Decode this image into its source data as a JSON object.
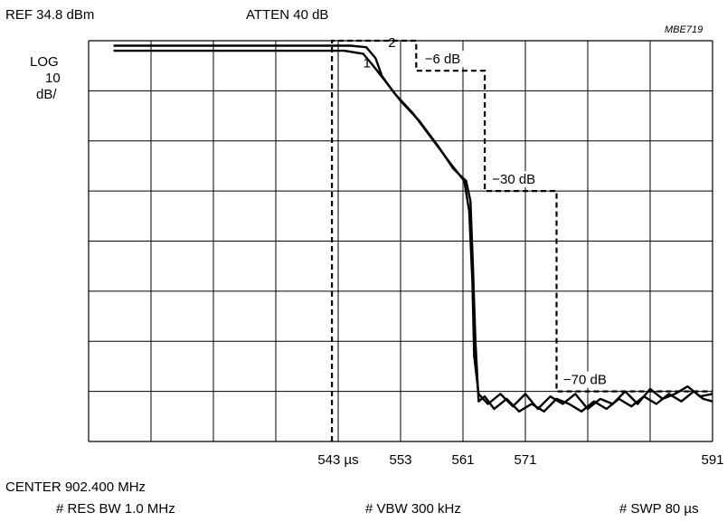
{
  "header": {
    "ref_level": "REF 34.8 dBm",
    "attenuation": "ATTEN 40 dB",
    "figure_id": "MBE719"
  },
  "scale": {
    "line1": "LOG",
    "line2": "10",
    "line3": "dB/"
  },
  "footer": {
    "center": "CENTER 902.400 MHz",
    "res_bw": "# RES BW 1.0 MHz",
    "vbw": "# VBW 300 kHz",
    "swp": "# SWP 80 µs"
  },
  "chart_data": {
    "type": "line",
    "title": "",
    "grid": true,
    "grid_divisions": {
      "x": 10,
      "y": 8
    },
    "ylim": [
      -80,
      0
    ],
    "x_tick_labels": [
      "543 µs",
      "553",
      "561",
      "571",
      "591"
    ],
    "x_tick_positions_div": [
      4,
      5,
      6,
      7,
      10
    ],
    "mask_labels": [
      "−6 dB",
      "−30 dB",
      "−70 dB"
    ],
    "mask": {
      "name": "limit mask",
      "style": "dashed",
      "points_div_db": [
        [
          3.9,
          -80
        ],
        [
          3.9,
          0
        ],
        [
          5.25,
          0
        ],
        [
          5.25,
          -6
        ],
        [
          6.35,
          -6
        ],
        [
          6.35,
          -30
        ],
        [
          7.5,
          -30
        ],
        [
          7.5,
          -70
        ],
        [
          10,
          -70
        ]
      ]
    },
    "series": [
      {
        "label": "1",
        "points_div_db": [
          [
            0.4,
            -2
          ],
          [
            4.1,
            -2
          ],
          [
            4.4,
            -2.6
          ],
          [
            4.55,
            -4.8
          ],
          [
            4.75,
            -8
          ],
          [
            5.0,
            -12
          ],
          [
            5.3,
            -16
          ],
          [
            5.6,
            -21
          ],
          [
            5.85,
            -25.6
          ],
          [
            6.05,
            -28
          ],
          [
            6.12,
            -32
          ],
          [
            6.16,
            -45
          ],
          [
            6.2,
            -60
          ],
          [
            6.25,
            -72
          ],
          [
            6.35,
            -71
          ],
          [
            6.5,
            -73.5
          ],
          [
            6.7,
            -71.5
          ],
          [
            6.9,
            -74
          ],
          [
            7.1,
            -72.5
          ],
          [
            7.3,
            -74
          ],
          [
            7.5,
            -71.5
          ],
          [
            7.7,
            -72.5
          ],
          [
            7.9,
            -74
          ],
          [
            8.1,
            -72
          ],
          [
            8.3,
            -73.5
          ],
          [
            8.5,
            -71.5
          ],
          [
            8.7,
            -73
          ],
          [
            8.9,
            -71
          ],
          [
            9.1,
            -72.5
          ],
          [
            9.3,
            -70.5
          ],
          [
            9.5,
            -72
          ],
          [
            9.7,
            -70
          ],
          [
            9.85,
            -71.5
          ],
          [
            10,
            -72
          ]
        ]
      },
      {
        "label": "2",
        "points_div_db": [
          [
            0.4,
            -1
          ],
          [
            4.2,
            -1
          ],
          [
            4.45,
            -1.3
          ],
          [
            4.6,
            -3.5
          ],
          [
            4.7,
            -7
          ],
          [
            4.9,
            -10.5
          ],
          [
            5.2,
            -14.5
          ],
          [
            5.5,
            -19.5
          ],
          [
            5.8,
            -24.5
          ],
          [
            6.02,
            -28
          ],
          [
            6.1,
            -34
          ],
          [
            6.15,
            -48
          ],
          [
            6.18,
            -63
          ],
          [
            6.25,
            -70.5
          ],
          [
            6.4,
            -72.5
          ],
          [
            6.6,
            -70.5
          ],
          [
            6.8,
            -73
          ],
          [
            7.0,
            -70.5
          ],
          [
            7.2,
            -73.5
          ],
          [
            7.4,
            -71
          ],
          [
            7.6,
            -72.5
          ],
          [
            7.8,
            -70.5
          ],
          [
            8.0,
            -73.5
          ],
          [
            8.2,
            -71.5
          ],
          [
            8.4,
            -72.5
          ],
          [
            8.6,
            -70
          ],
          [
            8.8,
            -72.5
          ],
          [
            9.0,
            -69.5
          ],
          [
            9.2,
            -71.5
          ],
          [
            9.4,
            -70.5
          ],
          [
            9.6,
            -69
          ],
          [
            9.8,
            -71
          ],
          [
            10,
            -70.5
          ]
        ]
      }
    ]
  }
}
